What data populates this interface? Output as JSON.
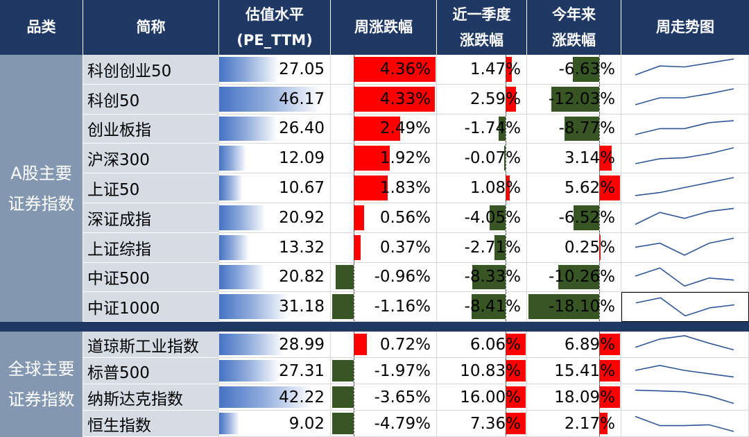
{
  "headers": {
    "category": "品类",
    "name": "简称",
    "pe": [
      "估值水平",
      "(PE_TTM)"
    ],
    "week": "周涨跌幅",
    "quarter": [
      "近一季度",
      "涨跌幅"
    ],
    "ytd": [
      "今年来",
      "涨跌幅"
    ],
    "trend": "周走势图"
  },
  "groups": [
    {
      "label": [
        "A股主要",
        "证券指数"
      ]
    },
    {
      "label": [
        "全球主要",
        "证券指数"
      ]
    }
  ],
  "colors": {
    "header_bg": "#1f3864",
    "category_bg": "#8497b0",
    "name_bg": "#d6dce4",
    "positive": "#ff0000",
    "negative": "#375623",
    "pe_bar": "#4472c4",
    "spark": "#2f5597"
  },
  "chart_data": {
    "type": "table",
    "columns": [
      "简称",
      "估值水平(PE_TTM)",
      "周涨跌幅",
      "近一季度涨跌幅",
      "今年来涨跌幅",
      "周走势图"
    ],
    "rows": [
      {
        "group": 0,
        "name": "科创创业50",
        "pe": "27.05",
        "week": "4.36%",
        "quarter": "1.47%",
        "ytd": "-6.63%",
        "pe_v": 27.05,
        "week_v": 4.36,
        "quarter_v": 1.47,
        "ytd_v": -6.63,
        "spark": [
          0.2,
          0.65,
          0.6,
          0.8,
          1.0
        ]
      },
      {
        "group": 0,
        "name": "科创50",
        "pe": "46.17",
        "week": "4.33%",
        "quarter": "2.59%",
        "ytd": "-12.03%",
        "pe_v": 46.17,
        "week_v": 4.33,
        "quarter_v": 2.59,
        "ytd_v": -12.03,
        "spark": [
          0.2,
          0.55,
          0.55,
          0.75,
          1.0
        ]
      },
      {
        "group": 0,
        "name": "创业板指",
        "pe": "26.40",
        "week": "2.49%",
        "quarter": "-1.74%",
        "ytd": "-8.77%",
        "pe_v": 26.4,
        "week_v": 2.49,
        "quarter_v": -1.74,
        "ytd_v": -8.77,
        "spark": [
          0.2,
          0.5,
          0.5,
          0.8,
          0.9
        ]
      },
      {
        "group": 0,
        "name": "沪深300",
        "pe": "12.09",
        "week": "1.92%",
        "quarter": "-0.07%",
        "ytd": "3.14%",
        "pe_v": 12.09,
        "week_v": 1.92,
        "quarter_v": -0.07,
        "ytd_v": 3.14,
        "spark": [
          0.2,
          0.45,
          0.5,
          0.7,
          1.0
        ]
      },
      {
        "group": 0,
        "name": "上证50",
        "pe": "10.67",
        "week": "1.83%",
        "quarter": "1.08%",
        "ytd": "5.62%",
        "pe_v": 10.67,
        "week_v": 1.83,
        "quarter_v": 1.08,
        "ytd_v": 5.62,
        "spark": [
          0.1,
          0.25,
          0.5,
          0.75,
          1.0
        ]
      },
      {
        "group": 0,
        "name": "深证成指",
        "pe": "20.92",
        "week": "0.56%",
        "quarter": "-4.05%",
        "ytd": "-6.52%",
        "pe_v": 20.92,
        "week_v": 0.56,
        "quarter_v": -4.05,
        "ytd_v": -6.52,
        "spark": [
          0.15,
          0.75,
          0.45,
          0.8,
          0.95
        ]
      },
      {
        "group": 0,
        "name": "上证综指",
        "pe": "13.32",
        "week": "0.37%",
        "quarter": "-2.71%",
        "ytd": "0.25%",
        "pe_v": 13.32,
        "week_v": 0.37,
        "quarter_v": -2.71,
        "ytd_v": 0.25,
        "spark": [
          0.5,
          0.7,
          0.1,
          0.7,
          0.95
        ]
      },
      {
        "group": 0,
        "name": "中证500",
        "pe": "20.82",
        "week": "-0.96%",
        "quarter": "-8.33%",
        "ytd": "-10.26%",
        "pe_v": 20.82,
        "week_v": -0.96,
        "quarter_v": -8.33,
        "ytd_v": -10.26,
        "spark": [
          0.55,
          0.95,
          0.05,
          0.45,
          0.35
        ]
      },
      {
        "group": 0,
        "name": "中证1000",
        "pe": "31.18",
        "week": "-1.16%",
        "quarter": "-8.41%",
        "ytd": "-18.10%",
        "pe_v": 31.18,
        "week_v": -1.16,
        "quarter_v": -8.41,
        "ytd_v": -18.1,
        "spark": [
          0.7,
          0.95,
          0.05,
          0.45,
          0.6
        ]
      },
      {
        "group": 1,
        "name": "道琼斯工业指数",
        "pe": "28.99",
        "week": "0.72%",
        "quarter": "6.06%",
        "ytd": "6.89%",
        "pe_v": 28.99,
        "week_v": 0.72,
        "quarter_v": 6.06,
        "ytd_v": 6.89,
        "spark": [
          0.3,
          0.8,
          1.0,
          0.55,
          0.15
        ]
      },
      {
        "group": 1,
        "name": "标普500",
        "pe": "27.31",
        "week": "-1.97%",
        "quarter": "10.83%",
        "ytd": "15.41%",
        "pe_v": 27.31,
        "week_v": -1.97,
        "quarter_v": 10.83,
        "ytd_v": 15.41,
        "spark": [
          0.5,
          0.8,
          0.5,
          0.3,
          0.1
        ]
      },
      {
        "group": 1,
        "name": "纳斯达克指数",
        "pe": "42.22",
        "week": "-3.65%",
        "quarter": "16.00%",
        "ytd": "18.09%",
        "pe_v": 42.22,
        "week_v": -3.65,
        "quarter_v": 16.0,
        "ytd_v": 18.09,
        "spark": [
          0.9,
          0.85,
          0.8,
          0.55,
          0.1
        ]
      },
      {
        "group": 1,
        "name": "恒生指数",
        "pe": "9.02",
        "week": "-4.79%",
        "quarter": "7.36%",
        "ytd": "2.17%",
        "pe_v": 9.02,
        "week_v": -4.79,
        "quarter_v": 7.36,
        "ytd_v": 2.17,
        "spark": [
          0.9,
          0.35,
          0.35,
          0.4,
          0.0
        ]
      }
    ]
  }
}
